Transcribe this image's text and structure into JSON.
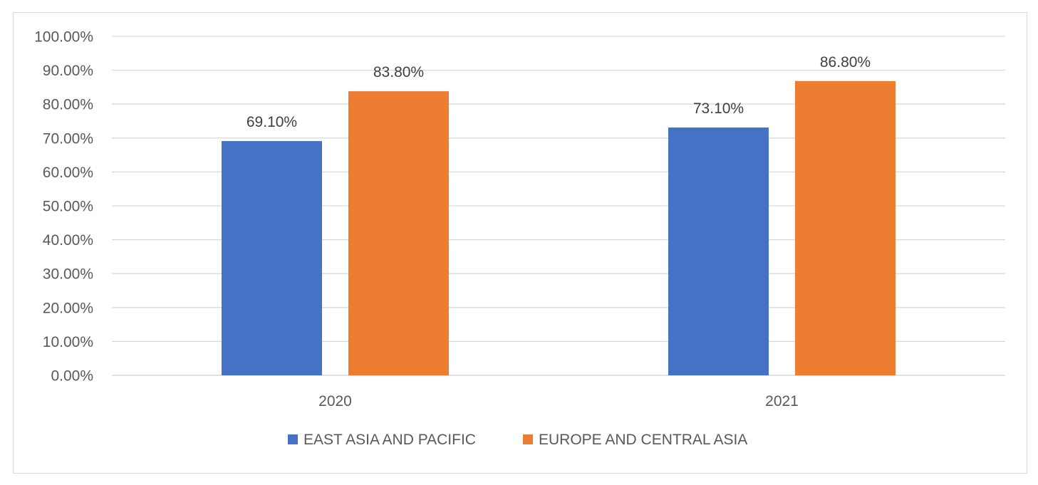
{
  "chart_data": {
    "type": "bar",
    "categories": [
      "2020",
      "2021"
    ],
    "series": [
      {
        "name": "EAST ASIA AND PACIFIC",
        "values": [
          69.1,
          73.1
        ],
        "color": "#4472c4"
      },
      {
        "name": "EUROPE AND CENTRAL ASIA",
        "values": [
          83.8,
          86.8
        ],
        "color": "#ed7d31"
      }
    ],
    "data_labels": [
      [
        "69.10%",
        "73.10%"
      ],
      [
        "83.80%",
        "86.80%"
      ]
    ],
    "y_ticks": [
      "0.00%",
      "10.00%",
      "20.00%",
      "30.00%",
      "40.00%",
      "50.00%",
      "60.00%",
      "70.00%",
      "80.00%",
      "90.00%",
      "100.00%"
    ],
    "ylim": [
      0,
      100
    ],
    "grid": true,
    "legend_position": "bottom",
    "title": "",
    "xlabel": "",
    "ylabel": ""
  }
}
